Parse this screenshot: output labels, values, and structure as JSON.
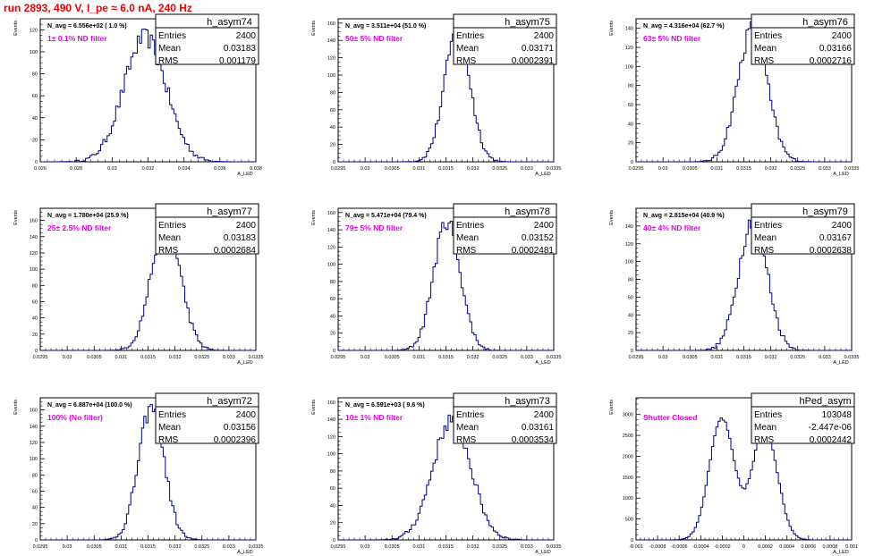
{
  "page": {
    "title": "run 2893,   490 V, I_pe ≈ 6.0 nA, 240 Hz"
  },
  "colors": {
    "line": "#000080",
    "title": "#e00000",
    "annotation": "#e000e0",
    "axis": "#000000"
  },
  "chart_data": [
    {
      "type": "line",
      "name": "h_asym74",
      "x_label": "A_LED",
      "y_label": "Events",
      "xlim": [
        0.026,
        0.038
      ],
      "x_ticks": [
        "0.026",
        "0.028",
        "0.03",
        "0.032",
        "0.034",
        "0.036",
        "0.038"
      ],
      "ylim": [
        0,
        130
      ],
      "y_ticks": [
        0,
        20,
        40,
        60,
        80,
        100,
        120
      ],
      "stats": {
        "entries": "2400",
        "mean": "0.03183",
        "rms": "0.001179"
      },
      "navg": "N_avg = 6.556e+02 ( 1.0 %)",
      "filter": "1± 0.1% ND filter",
      "gauss": {
        "amp": 113,
        "mu": 0.03183,
        "sigma": 0.001179
      }
    },
    {
      "type": "line",
      "name": "h_asym75",
      "x_label": "A_LED",
      "y_label": "Events",
      "xlim": [
        0.0295,
        0.0335
      ],
      "x_ticks": [
        "0.0295",
        "0.03",
        "0.0305",
        "0.031",
        "0.0315",
        "0.032",
        "0.0325",
        "0.033",
        "0.0335"
      ],
      "ylim": [
        0,
        165
      ],
      "y_ticks": [
        0,
        20,
        40,
        60,
        80,
        100,
        120,
        140,
        160
      ],
      "stats": {
        "entries": "2400",
        "mean": "0.03171",
        "rms": "0.0002391"
      },
      "navg": "N_avg = 3.511e+04 (51.0 %)",
      "filter": "50± 5% ND filter",
      "gauss": {
        "amp": 150,
        "mu": 0.03171,
        "sigma": 0.000239
      }
    },
    {
      "type": "line",
      "name": "h_asym76",
      "x_label": "A_LED",
      "y_label": "Events",
      "xlim": [
        0.0295,
        0.0335
      ],
      "x_ticks": [
        "0.0295",
        "0.03",
        "0.0305",
        "0.031",
        "0.0315",
        "0.032",
        "0.0325",
        "0.033",
        "0.0335"
      ],
      "ylim": [
        0,
        150
      ],
      "y_ticks": [
        0,
        20,
        40,
        60,
        80,
        100,
        120,
        140
      ],
      "stats": {
        "entries": "2400",
        "mean": "0.03166",
        "rms": "0.0002716"
      },
      "navg": "N_avg = 4.316e+04 (62.7 %)",
      "filter": "63± 5% ND filter",
      "gauss": {
        "amp": 140,
        "mu": 0.03166,
        "sigma": 0.000272
      }
    },
    {
      "type": "line",
      "name": "h_asym77",
      "x_label": "A_LED",
      "y_label": "Events",
      "xlim": [
        0.0295,
        0.0335
      ],
      "x_ticks": [
        "0.0295",
        "0.03",
        "0.0305",
        "0.031",
        "0.0315",
        "0.032",
        "0.0325",
        "0.033",
        "0.0335"
      ],
      "ylim": [
        0,
        175
      ],
      "y_ticks": [
        0,
        20,
        40,
        60,
        80,
        100,
        120,
        140,
        160
      ],
      "stats": {
        "entries": "2400",
        "mean": "0.03183",
        "rms": "0.0002684"
      },
      "navg": "N_avg = 1.780e+04 (25.9 %)",
      "filter": "25± 2.5% ND filter",
      "gauss": {
        "amp": 160,
        "mu": 0.03183,
        "sigma": 0.000268
      }
    },
    {
      "type": "line",
      "name": "h_asym78",
      "x_label": "A_LED",
      "y_label": "Events",
      "xlim": [
        0.0295,
        0.0335
      ],
      "x_ticks": [
        "0.0295",
        "0.03",
        "0.0305",
        "0.031",
        "0.0315",
        "0.032",
        "0.0325",
        "0.033",
        "0.0335"
      ],
      "ylim": [
        0,
        165
      ],
      "y_ticks": [
        0,
        20,
        40,
        60,
        80,
        100,
        120,
        140,
        160
      ],
      "stats": {
        "entries": "2400",
        "mean": "0.03152",
        "rms": "0.0002481"
      },
      "navg": "N_avg = 5.471e+04 (79.4 %)",
      "filter": "79± 5% ND filter",
      "gauss": {
        "amp": 150,
        "mu": 0.03152,
        "sigma": 0.000248
      }
    },
    {
      "type": "line",
      "name": "h_asym79",
      "x_label": "A_LED",
      "y_label": "Events",
      "xlim": [
        0.0295,
        0.0335
      ],
      "x_ticks": [
        "0.0295",
        "0.03",
        "0.0305",
        "0.031",
        "0.0315",
        "0.032",
        "0.0325",
        "0.033",
        "0.0335"
      ],
      "ylim": [
        0,
        160
      ],
      "y_ticks": [
        0,
        20,
        40,
        60,
        80,
        100,
        120,
        140
      ],
      "stats": {
        "entries": "2400",
        "mean": "0.03167",
        "rms": "0.0002638"
      },
      "navg": "N_avg = 2.815e+04 (40.9 %)",
      "filter": "40± 4% ND filter",
      "gauss": {
        "amp": 148,
        "mu": 0.03167,
        "sigma": 0.000264
      }
    },
    {
      "type": "line",
      "name": "h_asym72",
      "x_label": "A_LED",
      "y_label": "Events",
      "xlim": [
        0.0295,
        0.0335
      ],
      "x_ticks": [
        "0.0295",
        "0.03",
        "0.0305",
        "0.031",
        "0.0315",
        "0.032",
        "0.0325",
        "0.033",
        "0.0335"
      ],
      "ylim": [
        0,
        175
      ],
      "y_ticks": [
        0,
        20,
        40,
        60,
        80,
        100,
        120,
        140,
        160
      ],
      "stats": {
        "entries": "2400",
        "mean": "0.03156",
        "rms": "0.0002396"
      },
      "navg": "N_avg = 6.887e+04 (100.0 %)",
      "filter": "100% (No filter)",
      "gauss": {
        "amp": 162,
        "mu": 0.03156,
        "sigma": 0.00024
      }
    },
    {
      "type": "line",
      "name": "h_asym73",
      "x_label": "A_LED",
      "y_label": "Events",
      "xlim": [
        0.0295,
        0.0335
      ],
      "x_ticks": [
        "0.0295",
        "0.03",
        "0.0305",
        "0.031",
        "0.0315",
        "0.032",
        "0.0325",
        "0.033",
        "0.0335"
      ],
      "ylim": [
        0,
        165
      ],
      "y_ticks": [
        0,
        20,
        40,
        60,
        80,
        100,
        120,
        140,
        160
      ],
      "stats": {
        "entries": "2400",
        "mean": "0.03161",
        "rms": "0.0003534"
      },
      "navg": "N_avg = 6.591e+03 ( 9.6 %)",
      "filter": "10± 1% ND filter",
      "gauss": {
        "amp": 140,
        "mu": 0.03161,
        "sigma": 0.000353
      }
    },
    {
      "type": "line",
      "name": "hPed_asym",
      "x_label": "A_LED",
      "y_label": "Events",
      "xlim": [
        -0.001,
        0.001
      ],
      "x_ticks": [
        "-0.001",
        "-0.0008",
        "-0.0006",
        "-0.0004",
        "-0.0002",
        "0",
        "0.0002",
        "0.0004",
        "0.0006",
        "0.0008",
        "0.001"
      ],
      "ylim": [
        0,
        3400
      ],
      "y_ticks": [
        0,
        500,
        1000,
        1500,
        2000,
        2500,
        3000
      ],
      "stats": {
        "entries": "103048",
        "mean": "-2.447e-06",
        "rms": "0.0002442"
      },
      "navg": "",
      "filter": "Shutter Closed",
      "bimodal": [
        {
          "amp": 2900,
          "mu": -0.000205,
          "sigma": 0.000115
        },
        {
          "amp": 2700,
          "mu": 0.000195,
          "sigma": 0.000115
        }
      ]
    }
  ]
}
